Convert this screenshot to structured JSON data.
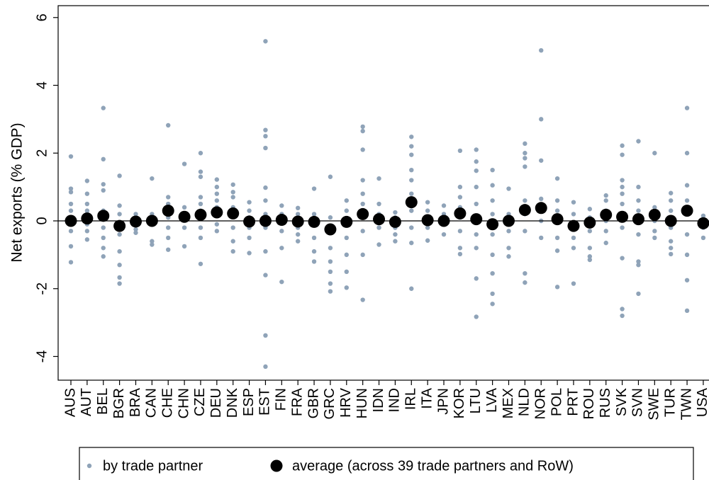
{
  "chart_data": {
    "type": "strip",
    "y_label": "Net exports (% GDP)",
    "categories": [
      "AUS",
      "AUT",
      "BEL",
      "BGR",
      "BRA",
      "CAN",
      "CHE",
      "CHN",
      "CZE",
      "DEU",
      "DNK",
      "ESP",
      "EST",
      "FIN",
      "FRA",
      "GBR",
      "GRC",
      "HRV",
      "HUN",
      "IDN",
      "IND",
      "IRL",
      "ITA",
      "JPN",
      "KOR",
      "LTU",
      "LVA",
      "MEX",
      "NLD",
      "NOR",
      "POL",
      "PRT",
      "ROU",
      "RUS",
      "SVK",
      "SVN",
      "SWE",
      "TUR",
      "TWN",
      "USA"
    ],
    "series": [
      {
        "name": "by trade partner",
        "color": "#8fa3b8",
        "values": [
          [
            1.9,
            0.95,
            0.85,
            0.5,
            0.3,
            0.1,
            -0.1,
            -0.3,
            -0.75,
            -1.22
          ],
          [
            1.18,
            0.8,
            0.5,
            0.3,
            0.2,
            0.1,
            -0.1,
            -0.3,
            -0.55
          ],
          [
            3.33,
            1.82,
            1.08,
            0.9,
            0.3,
            0.1,
            -0.2,
            -0.5,
            -0.8,
            -1.05
          ],
          [
            1.33,
            0.45,
            0.2,
            -0.1,
            -0.4,
            -0.9,
            -1.3,
            -1.67,
            -1.85
          ],
          [
            0.2,
            0.1,
            -0.1,
            -0.25,
            -0.35
          ],
          [
            1.25,
            0.2,
            0.1,
            -0.1,
            -0.6,
            -0.7
          ],
          [
            2.82,
            0.7,
            0.5,
            0.3,
            0.1,
            -0.2,
            -0.5,
            -0.85
          ],
          [
            1.68,
            0.4,
            0.2,
            0.1,
            -0.2,
            -0.75
          ],
          [
            2.0,
            1.45,
            1.3,
            0.7,
            0.5,
            0.3,
            0.1,
            -0.2,
            -0.5,
            -1.27
          ],
          [
            1.22,
            1.0,
            0.8,
            0.6,
            0.4,
            0.2,
            -0.1,
            -0.3
          ],
          [
            1.07,
            0.85,
            0.7,
            0.4,
            0.2,
            -0.2,
            -0.6,
            -0.9
          ],
          [
            0.55,
            0.3,
            0.1,
            -0.2,
            -0.5,
            -0.95
          ],
          [
            5.3,
            2.68,
            2.5,
            2.15,
            0.98,
            0.6,
            0.2,
            -0.2,
            -0.9,
            -1.6,
            -3.38,
            -4.3
          ],
          [
            0.45,
            0.2,
            0.05,
            -0.3,
            -0.8,
            -1.8
          ],
          [
            0.38,
            0.2,
            0.1,
            -0.2,
            -0.4,
            -0.6
          ],
          [
            0.95,
            0.2,
            -0.1,
            -0.5,
            -0.9,
            -1.2
          ],
          [
            1.3,
            0.1,
            -0.3,
            -0.8,
            -1.2,
            -1.5,
            -1.85,
            -2.08
          ],
          [
            0.6,
            0.3,
            0.0,
            -0.5,
            -1.0,
            -1.5,
            -1.97
          ],
          [
            2.78,
            2.65,
            2.1,
            1.2,
            0.8,
            0.5,
            0.2,
            -0.3,
            -1.0,
            -2.33
          ],
          [
            1.25,
            0.5,
            0.2,
            -0.2,
            -0.7
          ],
          [
            0.25,
            0.1,
            -0.2,
            -0.4,
            -0.6
          ],
          [
            2.48,
            2.2,
            1.95,
            1.5,
            1.2,
            0.8,
            0.3,
            -0.2,
            -0.65,
            -2.0
          ],
          [
            0.55,
            0.3,
            0.1,
            -0.2,
            -0.58
          ],
          [
            0.45,
            0.2,
            -0.1,
            -0.4
          ],
          [
            2.07,
            1.0,
            0.7,
            0.4,
            0.1,
            -0.3,
            -0.8,
            -0.98
          ],
          [
            2.1,
            1.75,
            1.48,
            1.0,
            0.5,
            0.1,
            -0.4,
            -0.8,
            -1.7,
            -2.83
          ],
          [
            1.5,
            1.05,
            0.6,
            0.2,
            -0.4,
            -1.0,
            -1.55,
            -2.15,
            -2.45
          ],
          [
            0.95,
            0.2,
            -0.3,
            -0.8,
            -1.05
          ],
          [
            2.28,
            2.0,
            1.85,
            1.6,
            0.6,
            0.2,
            -0.3,
            -1.55,
            -1.82
          ],
          [
            5.03,
            3.0,
            1.78,
            0.65,
            0.3,
            0.0,
            -0.5
          ],
          [
            1.25,
            0.6,
            0.3,
            0.0,
            -0.5,
            -0.88,
            -1.95
          ],
          [
            0.55,
            0.2,
            -0.2,
            -0.5,
            -0.8,
            -1.85
          ],
          [
            0.35,
            0.1,
            -0.3,
            -0.8,
            -1.05,
            -1.15
          ],
          [
            0.75,
            0.6,
            0.3,
            0.0,
            -0.3,
            -0.65
          ],
          [
            2.22,
            1.95,
            1.2,
            1.0,
            0.8,
            0.5,
            0.2,
            -0.2,
            -1.1,
            -2.6,
            -2.8
          ],
          [
            2.35,
            1.0,
            0.6,
            0.3,
            0.0,
            -0.4,
            -1.2,
            -1.3,
            -2.15
          ],
          [
            2.0,
            0.4,
            0.2,
            0.0,
            -0.3,
            -0.5
          ],
          [
            0.82,
            0.6,
            0.3,
            -0.2,
            -0.6,
            -0.8,
            -0.98
          ],
          [
            3.33,
            2.0,
            1.05,
            0.6,
            0.2,
            -0.4,
            -1.0,
            -1.75,
            -2.65
          ],
          [
            0.15,
            -0.2,
            -0.5
          ]
        ]
      },
      {
        "name": "average (across 39 trade partners and RoW)",
        "color": "#000000",
        "values": [
          0.0,
          0.07,
          0.15,
          -0.15,
          -0.02,
          0.0,
          0.3,
          0.12,
          0.18,
          0.25,
          0.22,
          -0.02,
          0.0,
          0.03,
          -0.02,
          -0.03,
          -0.25,
          -0.03,
          0.2,
          0.05,
          -0.03,
          0.55,
          0.02,
          0.0,
          0.22,
          0.05,
          -0.1,
          0.0,
          0.32,
          0.38,
          0.05,
          -0.15,
          -0.05,
          0.18,
          0.12,
          0.05,
          0.18,
          0.0,
          0.3,
          -0.07
        ]
      }
    ],
    "yline": 0,
    "ylim": [
      -4.7,
      6.35
    ],
    "yticks": [
      -4,
      -2,
      0,
      2,
      4,
      6
    ],
    "legend": "bottom"
  }
}
